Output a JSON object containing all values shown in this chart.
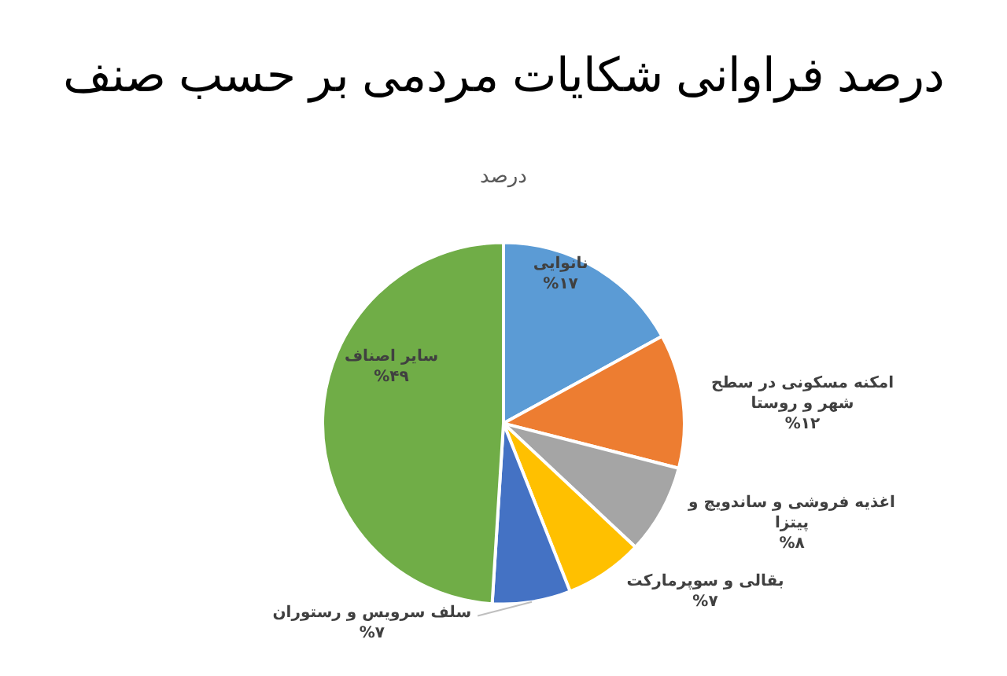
{
  "chart_data": {
    "type": "pie",
    "title": "درصد فراوانی شکایات مردمی بر حسب صنف",
    "subtitle": "درصد",
    "categories": [
      "نانوایی",
      "امکنه مسکونی در سطح شهر و روستا",
      "اغذیه فروشی و ساندویچ و پیتزا",
      "بقالی و سوپرمارکت",
      "سلف سرویس و رستوران",
      "سایر اصناف"
    ],
    "values": [
      17,
      12,
      8,
      7,
      7,
      49
    ],
    "value_labels": [
      "%۱۷",
      "%۱۲",
      "%۸",
      "%۷",
      "%۷",
      "%۴۹"
    ],
    "colors": [
      "#5b9bd5",
      "#ed7d31",
      "#a5a5a5",
      "#ffc000",
      "#4472c4",
      "#70ad47"
    ],
    "legend": false
  }
}
